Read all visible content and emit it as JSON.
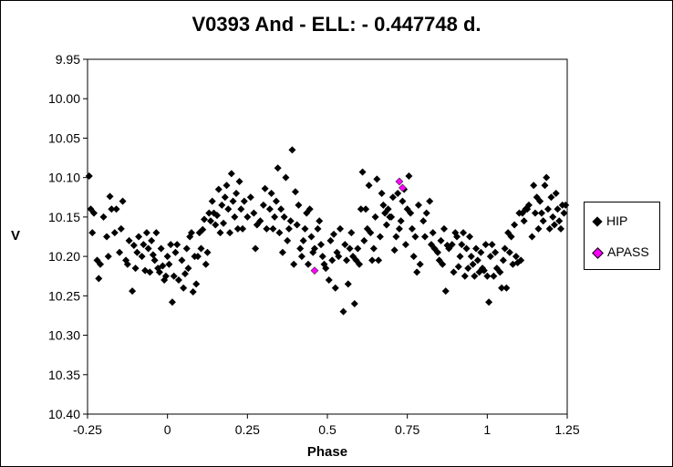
{
  "chart_data": {
    "type": "scatter",
    "title": "V0393 And - ELL: - 0.447748 d.",
    "xlabel": "Phase",
    "ylabel": "V",
    "xlim": [
      -0.25,
      1.25
    ],
    "ylim": [
      9.95,
      10.4
    ],
    "y_inverted": true,
    "xticks": [
      "-0.25",
      "0",
      "0.25",
      "0.5",
      "0.75",
      "1",
      "1.25"
    ],
    "yticks": [
      "9.95",
      "10.00",
      "10.05",
      "10.10",
      "10.15",
      "10.20",
      "10.25",
      "10.30",
      "10.35",
      "10.40"
    ],
    "grid": false,
    "legend_position": "right",
    "series": [
      {
        "name": "HIP",
        "color": "#000000",
        "marker": "diamond",
        "points": [
          [
            -0.245,
            10.098
          ],
          [
            -0.24,
            10.14
          ],
          [
            -0.235,
            10.17
          ],
          [
            -0.23,
            10.145
          ],
          [
            -0.22,
            10.205
          ],
          [
            -0.215,
            10.228
          ],
          [
            -0.21,
            10.21
          ],
          [
            -0.2,
            10.15
          ],
          [
            -0.19,
            10.175
          ],
          [
            -0.185,
            10.2
          ],
          [
            -0.18,
            10.124
          ],
          [
            -0.175,
            10.14
          ],
          [
            -0.165,
            10.17
          ],
          [
            -0.16,
            10.14
          ],
          [
            -0.15,
            10.195
          ],
          [
            -0.145,
            10.165
          ],
          [
            -0.14,
            10.13
          ],
          [
            -0.13,
            10.205
          ],
          [
            -0.125,
            10.21
          ],
          [
            -0.12,
            10.18
          ],
          [
            -0.11,
            10.244
          ],
          [
            -0.105,
            10.186
          ],
          [
            -0.1,
            10.215
          ],
          [
            -0.095,
            10.195
          ],
          [
            -0.09,
            10.175
          ],
          [
            -0.08,
            10.2
          ],
          [
            -0.075,
            10.185
          ],
          [
            -0.07,
            10.218
          ],
          [
            -0.065,
            10.17
          ],
          [
            -0.06,
            10.19
          ],
          [
            -0.055,
            10.22
          ],
          [
            -0.05,
            10.18
          ],
          [
            -0.045,
            10.198
          ],
          [
            -0.04,
            10.205
          ],
          [
            -0.035,
            10.17
          ],
          [
            -0.03,
            10.215
          ],
          [
            -0.025,
            10.22
          ],
          [
            -0.02,
            10.19
          ],
          [
            -0.015,
            10.212
          ],
          [
            -0.01,
            10.23
          ],
          [
            -0.005,
            10.225
          ],
          [
            0.0,
            10.2
          ],
          [
            0.005,
            10.21
          ],
          [
            0.01,
            10.185
          ],
          [
            0.015,
            10.258
          ],
          [
            0.02,
            10.225
          ],
          [
            0.025,
            10.195
          ],
          [
            0.03,
            10.185
          ],
          [
            0.035,
            10.23
          ],
          [
            0.045,
            10.205
          ],
          [
            0.05,
            10.24
          ],
          [
            0.055,
            10.222
          ],
          [
            0.06,
            10.19
          ],
          [
            0.065,
            10.215
          ],
          [
            0.07,
            10.175
          ],
          [
            0.075,
            10.17
          ],
          [
            0.08,
            10.245
          ],
          [
            0.085,
            10.2
          ],
          [
            0.09,
            10.235
          ],
          [
            0.095,
            10.2
          ],
          [
            0.1,
            10.17
          ],
          [
            0.105,
            10.19
          ],
          [
            0.11,
            10.166
          ],
          [
            0.115,
            10.153
          ],
          [
            0.12,
            10.21
          ],
          [
            0.125,
            10.195
          ],
          [
            0.13,
            10.145
          ],
          [
            0.135,
            10.155
          ],
          [
            0.14,
            10.13
          ],
          [
            0.145,
            10.145
          ],
          [
            0.15,
            10.16
          ],
          [
            0.155,
            10.148
          ],
          [
            0.16,
            10.115
          ],
          [
            0.165,
            10.17
          ],
          [
            0.17,
            10.135
          ],
          [
            0.175,
            10.158
          ],
          [
            0.18,
            10.125
          ],
          [
            0.185,
            10.11
          ],
          [
            0.19,
            10.14
          ],
          [
            0.195,
            10.17
          ],
          [
            0.2,
            10.095
          ],
          [
            0.205,
            10.13
          ],
          [
            0.21,
            10.15
          ],
          [
            0.215,
            10.12
          ],
          [
            0.22,
            10.165
          ],
          [
            0.225,
            10.105
          ],
          [
            0.23,
            10.14
          ],
          [
            0.235,
            10.165
          ],
          [
            0.24,
            10.13
          ],
          [
            0.25,
            10.15
          ],
          [
            0.26,
            10.125
          ],
          [
            0.27,
            10.145
          ],
          [
            0.275,
            10.19
          ],
          [
            0.28,
            10.16
          ],
          [
            0.29,
            10.155
          ],
          [
            0.3,
            10.135
          ],
          [
            0.305,
            10.114
          ],
          [
            0.31,
            10.165
          ],
          [
            0.32,
            10.14
          ],
          [
            0.325,
            10.12
          ],
          [
            0.33,
            10.165
          ],
          [
            0.335,
            10.15
          ],
          [
            0.34,
            10.13
          ],
          [
            0.345,
            10.088
          ],
          [
            0.35,
            10.17
          ],
          [
            0.355,
            10.14
          ],
          [
            0.36,
            10.195
          ],
          [
            0.365,
            10.15
          ],
          [
            0.37,
            10.1
          ],
          [
            0.375,
            10.18
          ],
          [
            0.38,
            10.165
          ],
          [
            0.385,
            10.155
          ],
          [
            0.39,
            10.065
          ],
          [
            0.395,
            10.21
          ],
          [
            0.4,
            10.118
          ],
          [
            0.405,
            10.16
          ],
          [
            0.41,
            10.135
          ],
          [
            0.415,
            10.19
          ],
          [
            0.42,
            10.2
          ],
          [
            0.425,
            10.18
          ],
          [
            0.43,
            10.165
          ],
          [
            0.435,
            10.145
          ],
          [
            0.44,
            10.21
          ],
          [
            0.445,
            10.14
          ],
          [
            0.45,
            10.175
          ],
          [
            0.455,
            10.195
          ],
          [
            0.46,
            10.19
          ],
          [
            0.47,
            10.165
          ],
          [
            0.475,
            10.155
          ],
          [
            0.48,
            10.185
          ],
          [
            0.485,
            10.2
          ],
          [
            0.49,
            10.21
          ],
          [
            0.495,
            10.215
          ],
          [
            0.505,
            10.23
          ],
          [
            0.51,
            10.18
          ],
          [
            0.515,
            10.205
          ],
          [
            0.52,
            10.172
          ],
          [
            0.525,
            10.24
          ],
          [
            0.53,
            10.195
          ],
          [
            0.535,
            10.2
          ],
          [
            0.54,
            10.165
          ],
          [
            0.55,
            10.27
          ],
          [
            0.555,
            10.185
          ],
          [
            0.56,
            10.205
          ],
          [
            0.565,
            10.235
          ],
          [
            0.57,
            10.19
          ],
          [
            0.575,
            10.17
          ],
          [
            0.58,
            10.2
          ],
          [
            0.585,
            10.26
          ],
          [
            0.59,
            10.205
          ],
          [
            0.595,
            10.19
          ],
          [
            0.6,
            10.21
          ],
          [
            0.605,
            10.14
          ],
          [
            0.61,
            10.093
          ],
          [
            0.615,
            10.18
          ],
          [
            0.62,
            10.14
          ],
          [
            0.625,
            10.165
          ],
          [
            0.63,
            10.11
          ],
          [
            0.635,
            10.17
          ],
          [
            0.64,
            10.205
          ],
          [
            0.645,
            10.19
          ],
          [
            0.65,
            10.15
          ],
          [
            0.655,
            10.102
          ],
          [
            0.66,
            10.205
          ],
          [
            0.665,
            10.175
          ],
          [
            0.67,
            10.12
          ],
          [
            0.675,
            10.135
          ],
          [
            0.68,
            10.145
          ],
          [
            0.685,
            10.16
          ],
          [
            0.69,
            10.14
          ],
          [
            0.695,
            10.15
          ],
          [
            0.7,
            10.15
          ],
          [
            0.705,
            10.125
          ],
          [
            0.71,
            10.192
          ],
          [
            0.715,
            10.175
          ],
          [
            0.72,
            10.12
          ],
          [
            0.725,
            10.165
          ],
          [
            0.73,
            10.155
          ],
          [
            0.735,
            10.13
          ],
          [
            0.74,
            10.115
          ],
          [
            0.745,
            10.185
          ],
          [
            0.75,
            10.14
          ],
          [
            0.755,
            10.098
          ],
          [
            0.76,
            10.145
          ],
          [
            0.765,
            10.165
          ],
          [
            0.77,
            10.2
          ],
          [
            0.775,
            10.175
          ],
          [
            0.78,
            10.22
          ],
          [
            0.785,
            10.135
          ],
          [
            0.79,
            10.21
          ],
          [
            0.8,
            10.155
          ],
          [
            0.805,
            10.175
          ],
          [
            0.81,
            10.145
          ],
          [
            0.82,
            10.13
          ],
          [
            0.825,
            10.185
          ],
          [
            0.83,
            10.17
          ],
          [
            0.835,
            10.19
          ],
          [
            0.845,
            10.195
          ],
          [
            0.85,
            10.205
          ],
          [
            0.855,
            10.18
          ],
          [
            0.86,
            10.21
          ],
          [
            0.865,
            10.165
          ],
          [
            0.87,
            10.244
          ],
          [
            0.875,
            10.186
          ],
          [
            0.88,
            10.19
          ],
          [
            0.89,
            10.185
          ],
          [
            0.895,
            10.22
          ],
          [
            0.9,
            10.17
          ],
          [
            0.905,
            10.175
          ],
          [
            0.91,
            10.213
          ],
          [
            0.915,
            10.2
          ],
          [
            0.92,
            10.185
          ],
          [
            0.925,
            10.17
          ],
          [
            0.93,
            10.225
          ],
          [
            0.935,
            10.19
          ],
          [
            0.94,
            10.215
          ],
          [
            0.945,
            10.175
          ],
          [
            0.95,
            10.2
          ],
          [
            0.955,
            10.21
          ],
          [
            0.96,
            10.225
          ],
          [
            0.965,
            10.19
          ],
          [
            0.97,
            10.205
          ],
          [
            0.975,
            10.22
          ],
          [
            0.98,
            10.195
          ],
          [
            0.985,
            10.215
          ],
          [
            0.99,
            10.218
          ],
          [
            0.995,
            10.185
          ],
          [
            1.0,
            10.225
          ],
          [
            1.005,
            10.258
          ],
          [
            1.01,
            10.2
          ],
          [
            1.015,
            10.185
          ],
          [
            1.02,
            10.225
          ],
          [
            1.025,
            10.195
          ],
          [
            1.03,
            10.215
          ],
          [
            1.04,
            10.22
          ],
          [
            1.045,
            10.24
          ],
          [
            1.05,
            10.205
          ],
          [
            1.055,
            10.19
          ],
          [
            1.06,
            10.24
          ],
          [
            1.065,
            10.17
          ],
          [
            1.07,
            10.195
          ],
          [
            1.075,
            10.175
          ],
          [
            1.08,
            10.21
          ],
          [
            1.085,
            10.16
          ],
          [
            1.09,
            10.2
          ],
          [
            1.095,
            10.208
          ],
          [
            1.1,
            10.145
          ],
          [
            1.105,
            10.205
          ],
          [
            1.11,
            10.145
          ],
          [
            1.115,
            10.155
          ],
          [
            1.12,
            10.14
          ],
          [
            1.125,
            10.14
          ],
          [
            1.13,
            10.135
          ],
          [
            1.14,
            10.175
          ],
          [
            1.145,
            10.11
          ],
          [
            1.15,
            10.145
          ],
          [
            1.155,
            10.125
          ],
          [
            1.16,
            10.165
          ],
          [
            1.165,
            10.13
          ],
          [
            1.17,
            10.145
          ],
          [
            1.175,
            10.155
          ],
          [
            1.18,
            10.11
          ],
          [
            1.185,
            10.1
          ],
          [
            1.19,
            10.14
          ],
          [
            1.195,
            10.165
          ],
          [
            1.2,
            10.125
          ],
          [
            1.205,
            10.15
          ],
          [
            1.21,
            10.16
          ],
          [
            1.215,
            10.12
          ],
          [
            1.22,
            10.14
          ],
          [
            1.225,
            10.155
          ],
          [
            1.23,
            10.165
          ],
          [
            1.235,
            10.135
          ],
          [
            1.24,
            10.145
          ],
          [
            1.245,
            10.135
          ]
        ]
      },
      {
        "name": "APASS",
        "color": "#ff00ff",
        "marker": "diamond",
        "points": [
          [
            0.46,
            10.218
          ],
          [
            0.725,
            10.105
          ],
          [
            0.735,
            10.113
          ]
        ]
      }
    ]
  }
}
